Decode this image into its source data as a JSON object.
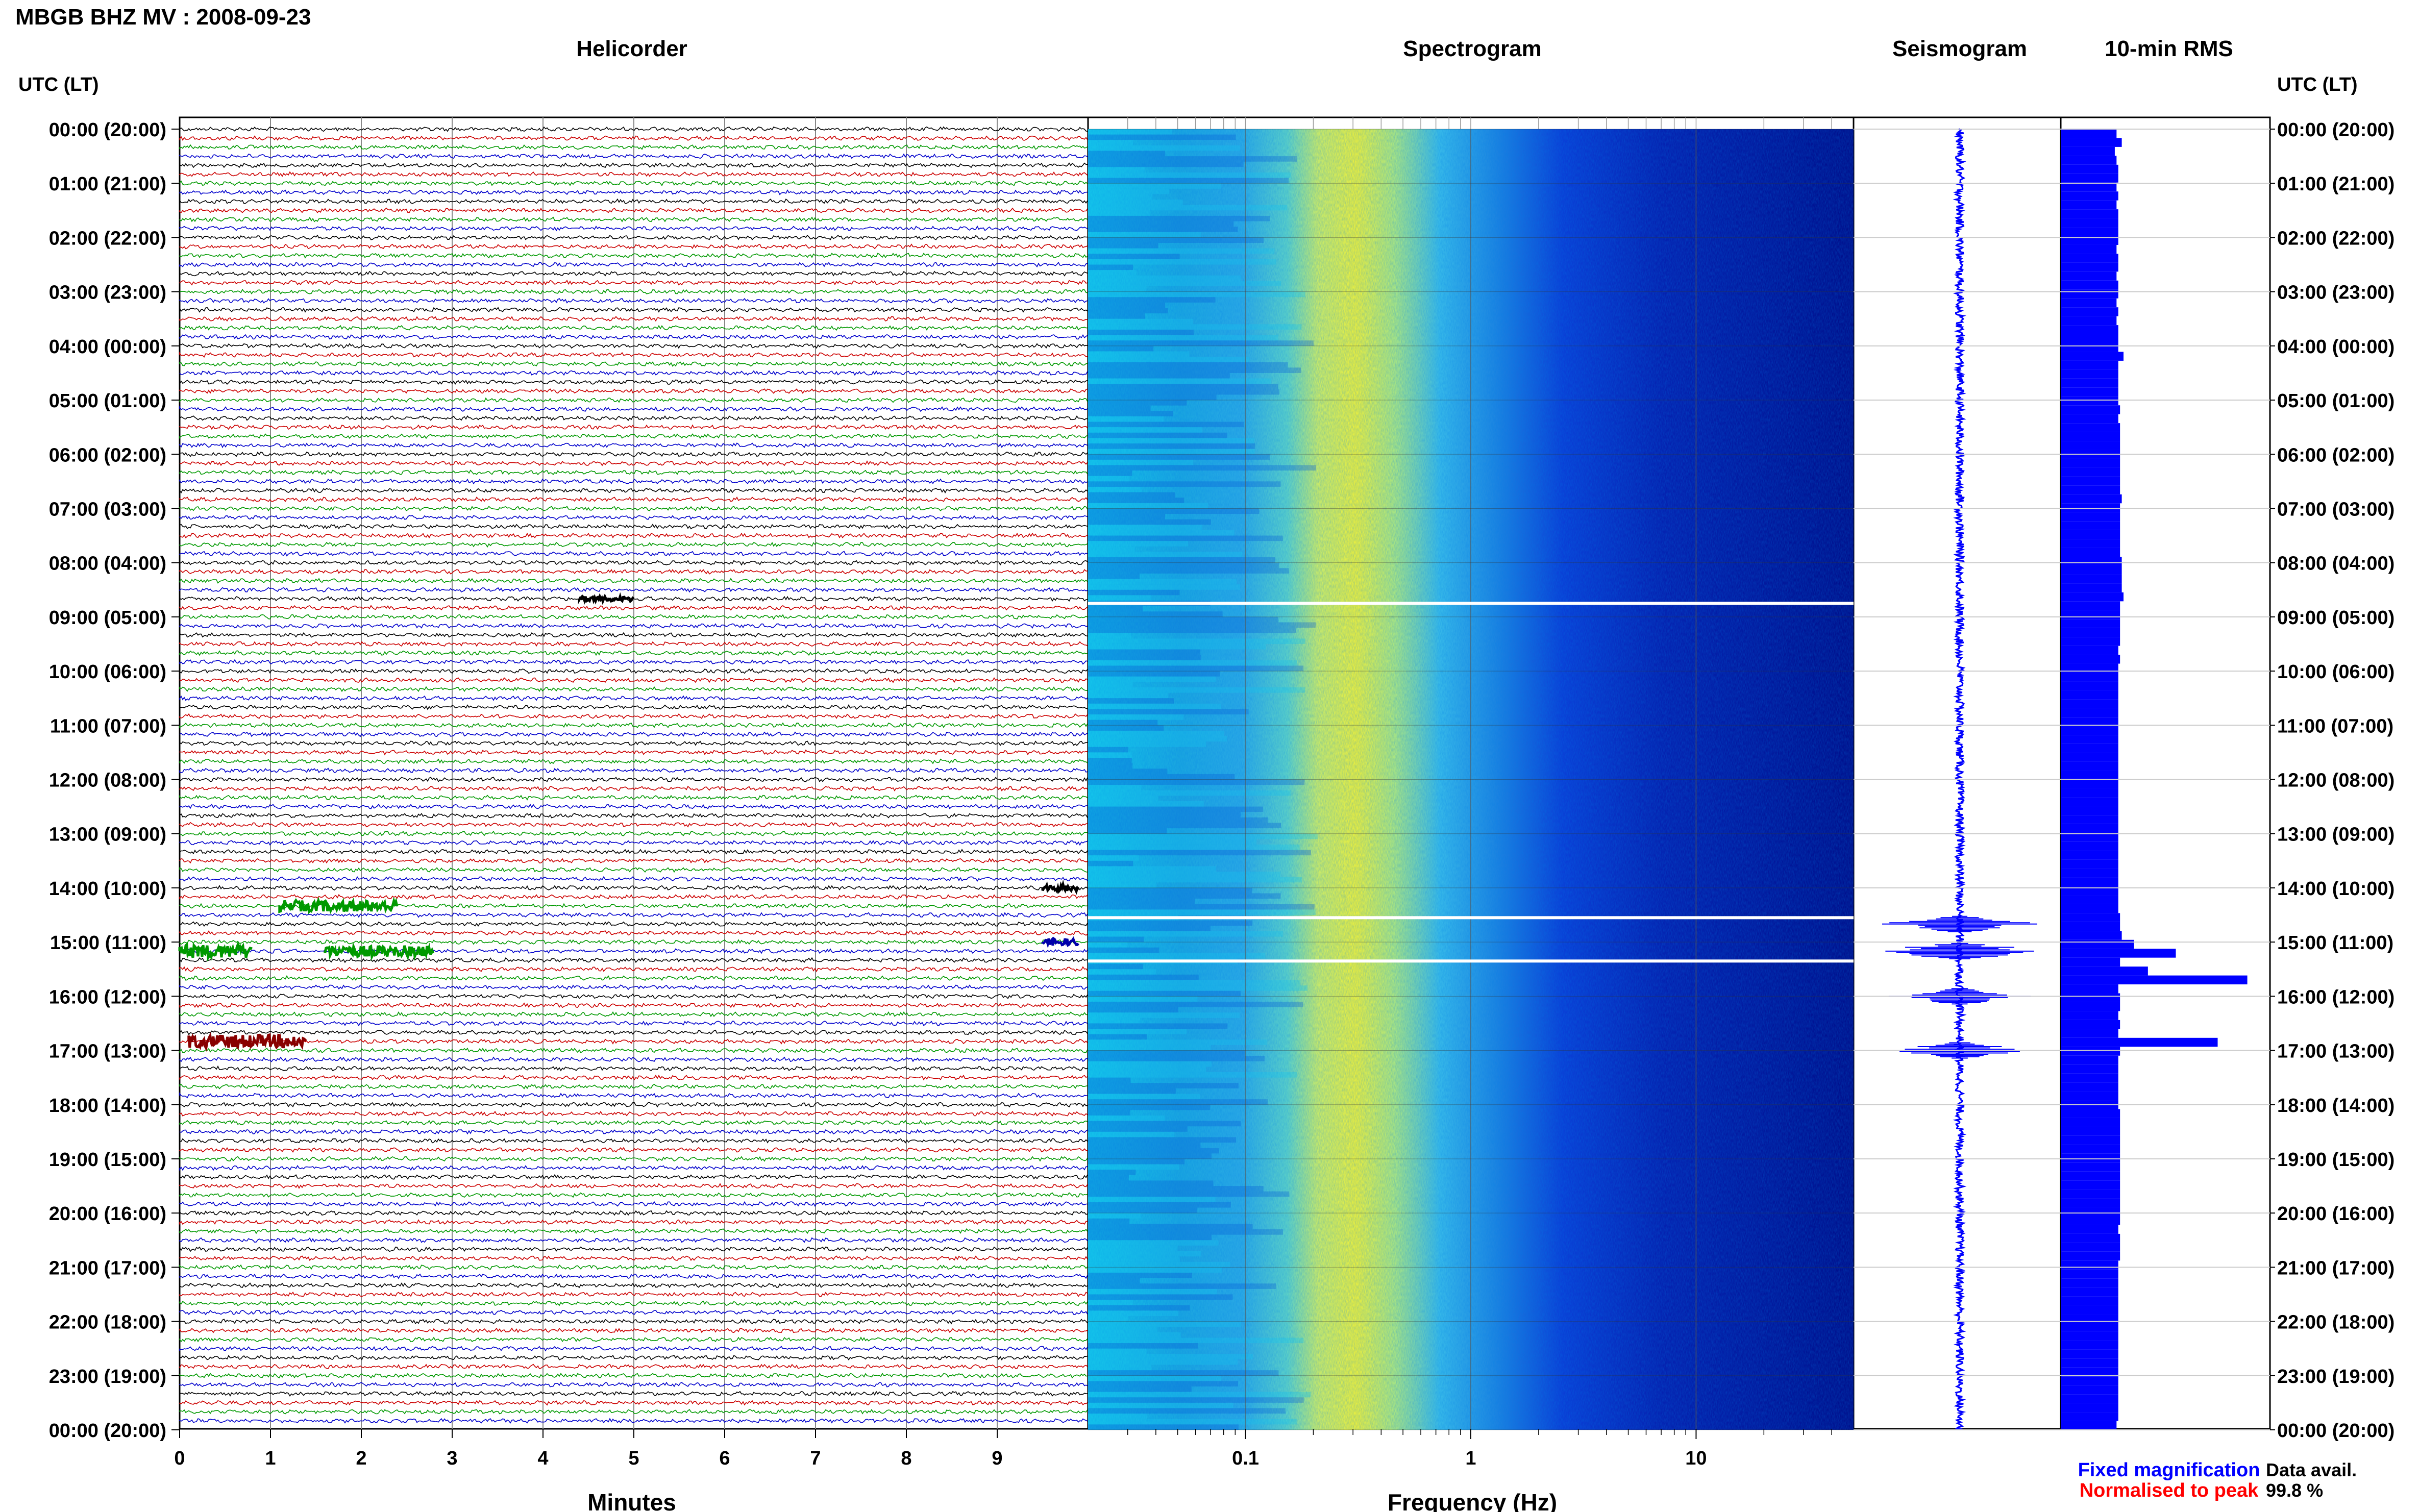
{
  "header": {
    "title": "MBGB BHZ MV : 2008-09-23"
  },
  "panels": {
    "helicorder": "Helicorder",
    "spectrogram": "Spectrogram",
    "seismogram": "Seismogram",
    "rms": "10-min RMS"
  },
  "axes": {
    "time_label_left": "UTC (LT)",
    "time_label_right": "UTC (LT)",
    "minutes_label": "Minutes",
    "frequency_label": "Frequency (Hz)"
  },
  "footer": {
    "fixed": "Fixed magnification",
    "normalised": "Normalised to peak",
    "avail_label": "Data avail.",
    "avail_value": "99.8 %"
  },
  "colors": {
    "helicorder_traces": [
      "#000000",
      "#cc0000",
      "#009900",
      "#0000cc"
    ],
    "seismogram": "#0000ff",
    "rms": "#0000ff",
    "fixed_text": "#0000ff",
    "normalised_text": "#ff0000"
  },
  "chart_data": [
    {
      "type": "line",
      "name": "helicorder",
      "title": "Helicorder",
      "xlabel": "Minutes",
      "x_ticks": [
        "0",
        "1",
        "2",
        "3",
        "4",
        "5",
        "6",
        "7",
        "8",
        "9"
      ],
      "xlim": [
        0,
        10
      ],
      "y_ticks": [
        "00:00 (20:00)",
        "01:00 (21:00)",
        "02:00 (22:00)",
        "03:00 (23:00)",
        "04:00 (00:00)",
        "05:00 (01:00)",
        "06:00 (02:00)",
        "07:00 (03:00)",
        "08:00 (04:00)",
        "09:00 (05:00)",
        "10:00 (06:00)",
        "11:00 (07:00)",
        "12:00 (08:00)",
        "13:00 (09:00)",
        "14:00 (10:00)",
        "15:00 (11:00)",
        "16:00 (12:00)",
        "17:00 (13:00)",
        "18:00 (14:00)",
        "19:00 (15:00)",
        "20:00 (16:00)",
        "21:00 (17:00)",
        "22:00 (18:00)",
        "23:00 (19:00)",
        "00:00 (20:00)"
      ],
      "rows": 144,
      "grid": true
    },
    {
      "type": "heatmap",
      "name": "spectrogram",
      "title": "Spectrogram",
      "xlabel": "Frequency (Hz)",
      "x_scale": "log",
      "xlim": [
        0.02,
        50
      ],
      "x_ticks": [
        "0.1",
        "1",
        "10"
      ],
      "peak_frequency_hz": 0.4
    },
    {
      "type": "line",
      "name": "seismogram",
      "title": "Seismogram",
      "events_utc": [
        "14:40",
        "15:10",
        "16:00",
        "17:00"
      ]
    },
    {
      "type": "bar",
      "name": "rms",
      "title": "10-min RMS",
      "orientation": "horizontal",
      "values": [
        3.2,
        3.5,
        3.1,
        3.2,
        3.3,
        3.3,
        3.2,
        3.3,
        3.2,
        3.3,
        3.3,
        3.3,
        3.3,
        3.2,
        3.3,
        3.3,
        3.2,
        3.3,
        3.3,
        3.2,
        3.3,
        3.2,
        3.3,
        3.3,
        3.3,
        3.6,
        3.3,
        3.3,
        3.3,
        3.3,
        3.3,
        3.4,
        3.3,
        3.4,
        3.4,
        3.4,
        3.4,
        3.4,
        3.4,
        3.4,
        3.4,
        3.5,
        3.4,
        3.4,
        3.4,
        3.4,
        3.4,
        3.4,
        3.5,
        3.5,
        3.5,
        3.5,
        3.6,
        3.4,
        3.4,
        3.4,
        3.4,
        3.4,
        3.3,
        3.4,
        3.3,
        3.3,
        3.3,
        3.3,
        3.3,
        3.3,
        3.3,
        3.3,
        3.3,
        3.3,
        3.3,
        3.3,
        3.3,
        3.3,
        3.3,
        3.3,
        3.3,
        3.3,
        3.3,
        3.3,
        3.3,
        3.3,
        3.3,
        3.3,
        3.3,
        3.3,
        3.3,
        3.3,
        3.4,
        3.4,
        3.5,
        4.2,
        6.6,
        3.4,
        5.0,
        10.7,
        3.3,
        3.4,
        3.4,
        3.3,
        3.4,
        3.3,
        9.0,
        3.4,
        3.3,
        3.3,
        3.3,
        3.3,
        3.3,
        3.3,
        3.4,
        3.4,
        3.4,
        3.4,
        3.4,
        3.4,
        3.4,
        3.4,
        3.4,
        3.4,
        3.4,
        3.4,
        3.4,
        3.3,
        3.4,
        3.4,
        3.4,
        3.3,
        3.3,
        3.3,
        3.3,
        3.3,
        3.3,
        3.3,
        3.3,
        3.3,
        3.3,
        3.3,
        3.3,
        3.3,
        3.3,
        3.3,
        3.3,
        3.3,
        3.3,
        3.2
      ],
      "xlim": [
        0,
        12
      ]
    }
  ]
}
